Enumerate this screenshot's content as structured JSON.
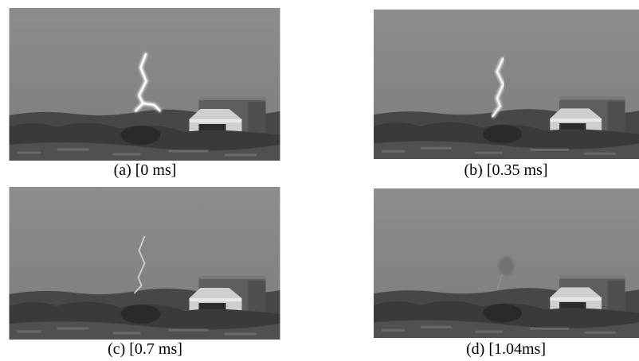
{
  "panels": [
    {
      "caption": "(a) [0 ms]"
    },
    {
      "caption": "(b) [0.35 ms]"
    },
    {
      "caption": "(c) [0.7 ms]"
    },
    {
      "caption": "(d) [1.04ms]"
    }
  ]
}
